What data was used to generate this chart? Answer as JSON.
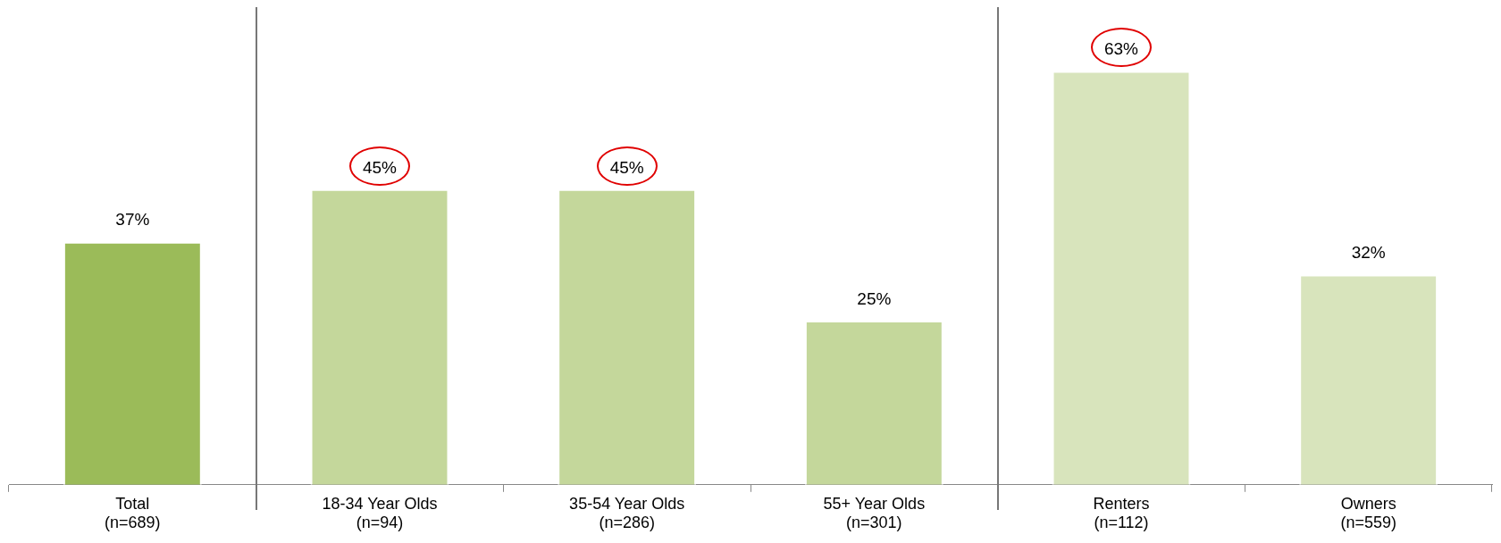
{
  "chart_data": {
    "type": "bar",
    "categories": [
      "Total\n(n=689)",
      "18-34 Year Olds\n(n=94)",
      "35-54 Year Olds\n(n=286)",
      "55+ Year Olds\n(n=301)",
      "Renters\n(n=112)",
      "Owners\n(n=559)"
    ],
    "values": [
      37,
      45,
      45,
      25,
      63,
      32
    ],
    "colors": [
      "#9bbb59",
      "#c4d79b",
      "#c4d79b",
      "#c4d79b",
      "#d8e4bc",
      "#d8e4bc"
    ],
    "value_labels": [
      "37%",
      "45%",
      "45%",
      "25%",
      "63%",
      "32%"
    ],
    "grid": false,
    "legend": false
  }
}
